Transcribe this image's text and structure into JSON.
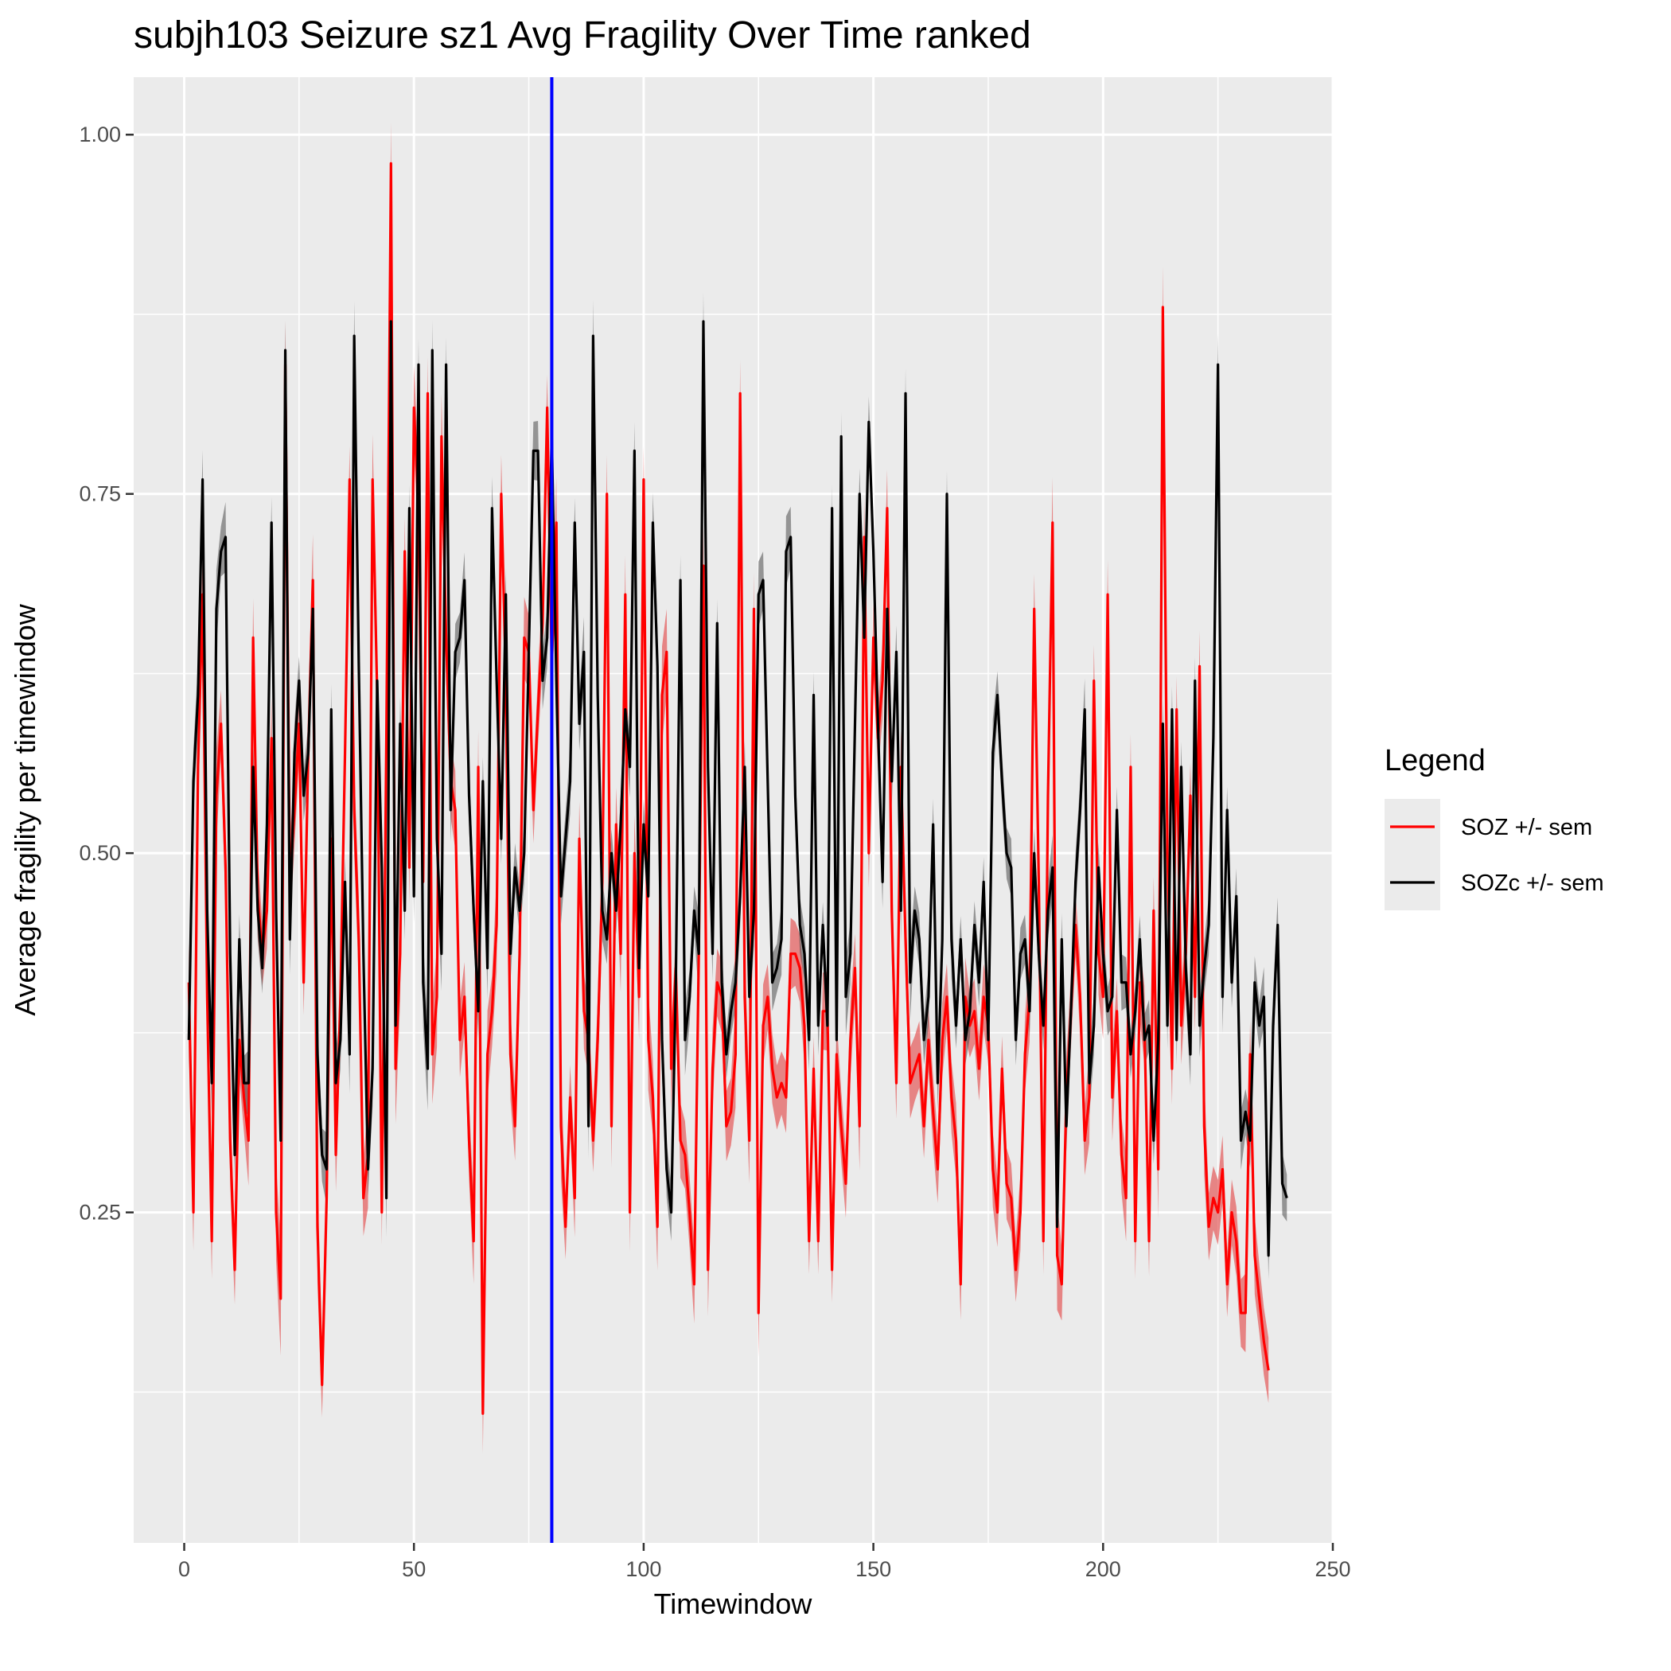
{
  "chart_data": {
    "type": "line",
    "title": "subjh103 Seizure sz1 Avg Fragility Over Time ranked",
    "xlabel": "Timewindow",
    "ylabel": "Average fragility per timewindow",
    "xlim": [
      -11,
      250
    ],
    "ylim": [
      0.02,
      1.04
    ],
    "x_ticks": [
      0,
      50,
      100,
      150,
      200,
      250
    ],
    "x_tick_labels": [
      "0",
      "50",
      "100",
      "150",
      "200",
      "250"
    ],
    "y_ticks": [
      0.25,
      0.5,
      0.75,
      1.0
    ],
    "y_tick_labels": [
      "0.25",
      "0.50",
      "0.75",
      "1.00"
    ],
    "grid": true,
    "vline": {
      "x": 80,
      "color": "#0000ff"
    },
    "legend": {
      "title": "Legend",
      "position": "right",
      "entries": [
        {
          "label": "SOZ +/- sem",
          "color": "#ff0000"
        },
        {
          "label": "SOZc +/- sem",
          "color": "#000000"
        }
      ]
    },
    "x_start": 1,
    "series": [
      {
        "name": "SOZ +/- sem",
        "color": "#ff0000",
        "ribbon_color": "#e34040",
        "values": [
          0.41,
          0.25,
          0.56,
          0.68,
          0.4,
          0.23,
          0.54,
          0.59,
          0.49,
          0.3,
          0.21,
          0.37,
          0.33,
          0.3,
          0.65,
          0.47,
          0.43,
          0.46,
          0.58,
          0.25,
          0.19,
          0.84,
          0.48,
          0.53,
          0.59,
          0.41,
          0.57,
          0.69,
          0.24,
          0.13,
          0.26,
          0.51,
          0.29,
          0.4,
          0.57,
          0.76,
          0.53,
          0.44,
          0.26,
          0.29,
          0.76,
          0.61,
          0.25,
          0.58,
          0.98,
          0.35,
          0.43,
          0.71,
          0.49,
          0.81,
          0.74,
          0.48,
          0.82,
          0.36,
          0.4,
          0.79,
          0.65,
          0.55,
          0.53,
          0.37,
          0.4,
          0.3,
          0.23,
          0.56,
          0.11,
          0.36,
          0.39,
          0.45,
          0.75,
          0.62,
          0.36,
          0.31,
          0.43,
          0.65,
          0.64,
          0.53,
          0.6,
          0.66,
          0.81,
          0.63,
          0.73,
          0.31,
          0.24,
          0.33,
          0.26,
          0.51,
          0.39,
          0.37,
          0.3,
          0.37,
          0.48,
          0.75,
          0.31,
          0.52,
          0.43,
          0.68,
          0.25,
          0.5,
          0.4,
          0.76,
          0.37,
          0.33,
          0.24,
          0.61,
          0.64,
          0.35,
          0.42,
          0.3,
          0.29,
          0.25,
          0.2,
          0.43,
          0.7,
          0.21,
          0.35,
          0.41,
          0.4,
          0.31,
          0.32,
          0.36,
          0.82,
          0.4,
          0.3,
          0.67,
          0.18,
          0.38,
          0.4,
          0.35,
          0.33,
          0.34,
          0.33,
          0.43,
          0.43,
          0.42,
          0.38,
          0.23,
          0.35,
          0.23,
          0.39,
          0.39,
          0.21,
          0.36,
          0.31,
          0.27,
          0.37,
          0.42,
          0.31,
          0.72,
          0.5,
          0.65,
          0.58,
          0.62,
          0.74,
          0.46,
          0.34,
          0.56,
          0.44,
          0.34,
          0.35,
          0.36,
          0.31,
          0.37,
          0.32,
          0.28,
          0.37,
          0.4,
          0.33,
          0.3,
          0.2,
          0.4,
          0.38,
          0.39,
          0.35,
          0.4,
          0.38,
          0.28,
          0.25,
          0.35,
          0.27,
          0.26,
          0.21,
          0.25,
          0.36,
          0.4,
          0.67,
          0.48,
          0.23,
          0.54,
          0.73,
          0.22,
          0.2,
          0.33,
          0.39,
          0.45,
          0.4,
          0.3,
          0.33,
          0.62,
          0.43,
          0.4,
          0.68,
          0.33,
          0.39,
          0.29,
          0.26,
          0.56,
          0.23,
          0.41,
          0.38,
          0.23,
          0.46,
          0.28,
          0.88,
          0.5,
          0.35,
          0.6,
          0.38,
          0.43,
          0.54,
          0.4,
          0.63,
          0.31,
          0.24,
          0.26,
          0.25,
          0.28,
          0.2,
          0.25,
          0.23,
          0.18,
          0.18,
          0.36,
          0.22,
          0.19,
          0.16,
          0.14
        ]
      },
      {
        "name": "SOZc +/- sem",
        "color": "#000000",
        "ribbon_color": "#4d4d4d",
        "values": [
          0.37,
          0.55,
          0.61,
          0.76,
          0.46,
          0.34,
          0.67,
          0.71,
          0.72,
          0.43,
          0.29,
          0.44,
          0.34,
          0.34,
          0.56,
          0.46,
          0.42,
          0.52,
          0.73,
          0.46,
          0.3,
          0.85,
          0.44,
          0.57,
          0.62,
          0.54,
          0.57,
          0.67,
          0.36,
          0.29,
          0.28,
          0.6,
          0.34,
          0.37,
          0.48,
          0.36,
          0.86,
          0.63,
          0.43,
          0.28,
          0.35,
          0.62,
          0.49,
          0.26,
          0.87,
          0.38,
          0.59,
          0.46,
          0.74,
          0.47,
          0.84,
          0.41,
          0.35,
          0.85,
          0.51,
          0.43,
          0.84,
          0.53,
          0.64,
          0.65,
          0.69,
          0.54,
          0.46,
          0.39,
          0.55,
          0.42,
          0.74,
          0.62,
          0.51,
          0.68,
          0.43,
          0.49,
          0.46,
          0.5,
          0.64,
          0.78,
          0.78,
          0.62,
          0.65,
          0.79,
          0.62,
          0.47,
          0.51,
          0.55,
          0.73,
          0.59,
          0.64,
          0.31,
          0.86,
          0.61,
          0.46,
          0.44,
          0.5,
          0.46,
          0.52,
          0.6,
          0.56,
          0.78,
          0.42,
          0.52,
          0.47,
          0.73,
          0.63,
          0.37,
          0.28,
          0.25,
          0.41,
          0.69,
          0.37,
          0.4,
          0.46,
          0.43,
          0.87,
          0.56,
          0.43,
          0.66,
          0.41,
          0.36,
          0.39,
          0.41,
          0.47,
          0.56,
          0.4,
          0.46,
          0.68,
          0.69,
          0.55,
          0.41,
          0.42,
          0.44,
          0.71,
          0.72,
          0.54,
          0.45,
          0.43,
          0.37,
          0.61,
          0.38,
          0.45,
          0.38,
          0.74,
          0.37,
          0.79,
          0.4,
          0.43,
          0.59,
          0.75,
          0.65,
          0.8,
          0.71,
          0.59,
          0.48,
          0.67,
          0.55,
          0.64,
          0.46,
          0.82,
          0.41,
          0.46,
          0.44,
          0.37,
          0.4,
          0.52,
          0.34,
          0.44,
          0.75,
          0.44,
          0.38,
          0.44,
          0.37,
          0.39,
          0.45,
          0.41,
          0.48,
          0.37,
          0.57,
          0.61,
          0.55,
          0.5,
          0.49,
          0.37,
          0.43,
          0.44,
          0.39,
          0.5,
          0.43,
          0.38,
          0.46,
          0.49,
          0.24,
          0.44,
          0.31,
          0.39,
          0.48,
          0.53,
          0.6,
          0.34,
          0.38,
          0.49,
          0.43,
          0.39,
          0.4,
          0.53,
          0.41,
          0.41,
          0.36,
          0.39,
          0.44,
          0.37,
          0.38,
          0.3,
          0.37,
          0.59,
          0.38,
          0.6,
          0.37,
          0.56,
          0.42,
          0.36,
          0.62,
          0.38,
          0.42,
          0.45,
          0.58,
          0.84,
          0.4,
          0.53,
          0.41,
          0.47,
          0.3,
          0.32,
          0.3,
          0.41,
          0.38,
          0.4,
          0.22,
          0.38,
          0.45,
          0.27,
          0.26
        ]
      }
    ]
  }
}
